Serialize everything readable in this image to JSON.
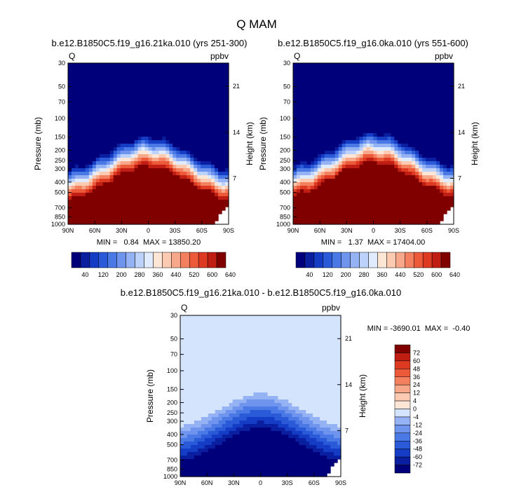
{
  "figure_title": "Q MAM",
  "chart_data": [
    {
      "type": "contour",
      "title": "b.e12.B1850C5.f19_g16.21ka.010 (yrs 251-300)",
      "variable": "Q",
      "units": "ppbv",
      "ylabel": "Pressure (mb)",
      "ylabel_right": "Height (km)",
      "x_ticks": [
        "90N",
        "60N",
        "30N",
        "0",
        "30S",
        "60S",
        "90S"
      ],
      "xlim": [
        90,
        -90
      ],
      "y_ticks": [
        30,
        50,
        70,
        100,
        150,
        200,
        250,
        300,
        400,
        500,
        700,
        850,
        1000
      ],
      "right_ticks": [
        21,
        14,
        7
      ],
      "ylim": [
        30,
        1000
      ],
      "stats": "MIN =   0.84  MAX = 13850.20",
      "contour_levels": [
        40,
        80,
        120,
        160,
        200,
        240,
        280,
        320,
        360,
        400,
        440,
        480,
        520,
        560,
        600,
        640
      ],
      "colorbar_labels": [
        "40",
        "120",
        "200",
        "280",
        "360",
        "440",
        "520",
        "600",
        "640"
      ]
    },
    {
      "type": "contour",
      "title": "b.e12.B1850C5.f19_g16.0ka.010 (yrs 551-600)",
      "variable": "Q",
      "units": "ppbv",
      "ylabel": "Pressure (mb)",
      "ylabel_right": "Height (km)",
      "x_ticks": [
        "90N",
        "60N",
        "30N",
        "0",
        "30S",
        "60S",
        "90S"
      ],
      "xlim": [
        90,
        -90
      ],
      "y_ticks": [
        30,
        50,
        70,
        100,
        150,
        200,
        250,
        300,
        400,
        500,
        700,
        850,
        1000
      ],
      "right_ticks": [
        21,
        14,
        7
      ],
      "ylim": [
        30,
        1000
      ],
      "stats": "MIN =   1.37  MAX = 17404.00",
      "contour_levels": [
        40,
        80,
        120,
        160,
        200,
        240,
        280,
        320,
        360,
        400,
        440,
        480,
        520,
        560,
        600,
        640
      ],
      "colorbar_labels": [
        "40",
        "120",
        "200",
        "280",
        "360",
        "440",
        "520",
        "600",
        "640"
      ]
    },
    {
      "type": "contour",
      "title": "b.e12.B1850C5.f19_g16.21ka.010 - b.e12.B1850C5.f19_g16.0ka.010",
      "variable": "Q",
      "units": "ppbv",
      "ylabel": "Pressure (mb)",
      "ylabel_right": "Height (km)",
      "x_ticks": [
        "90N",
        "60N",
        "30N",
        "0",
        "30S",
        "60S",
        "90S"
      ],
      "xlim": [
        90,
        -90
      ],
      "y_ticks": [
        30,
        50,
        70,
        100,
        150,
        200,
        250,
        300,
        400,
        500,
        700,
        850,
        1000
      ],
      "right_ticks": [
        21,
        14,
        7
      ],
      "ylim": [
        30,
        1000
      ],
      "stats": "MIN = -3690.01  MAX =  -0.40",
      "contour_levels": [
        -72,
        -60,
        -48,
        -36,
        -24,
        -12,
        -4,
        0,
        4,
        12,
        24,
        36,
        48,
        60,
        72
      ],
      "colorbar_labels": [
        "72",
        "60",
        "48",
        "36",
        "24",
        "12",
        "4",
        "0",
        "-4",
        "-12",
        "-24",
        "-36",
        "-48",
        "-60",
        "-72"
      ]
    }
  ],
  "colors": {
    "seq": [
      "#00007a",
      "#0a1ea0",
      "#143cc4",
      "#2a5ad8",
      "#4a78e4",
      "#6e94ee",
      "#94b2f4",
      "#bcd2fa",
      "#e0ecfd",
      "#fde6d6",
      "#fbcab0",
      "#f7a88a",
      "#f3805e",
      "#ec5a3a",
      "#de3a22",
      "#c01e12",
      "#800000"
    ],
    "diff": [
      "#00007a",
      "#0a1ea0",
      "#143cc4",
      "#2a5ad8",
      "#4a78e4",
      "#6e94ee",
      "#94b2f4",
      "#d4e4fc",
      "#fde6d6",
      "#fbcab0",
      "#f7a88a",
      "#f3805e",
      "#ec5a3a",
      "#de3a22",
      "#c01e12",
      "#800000"
    ]
  }
}
